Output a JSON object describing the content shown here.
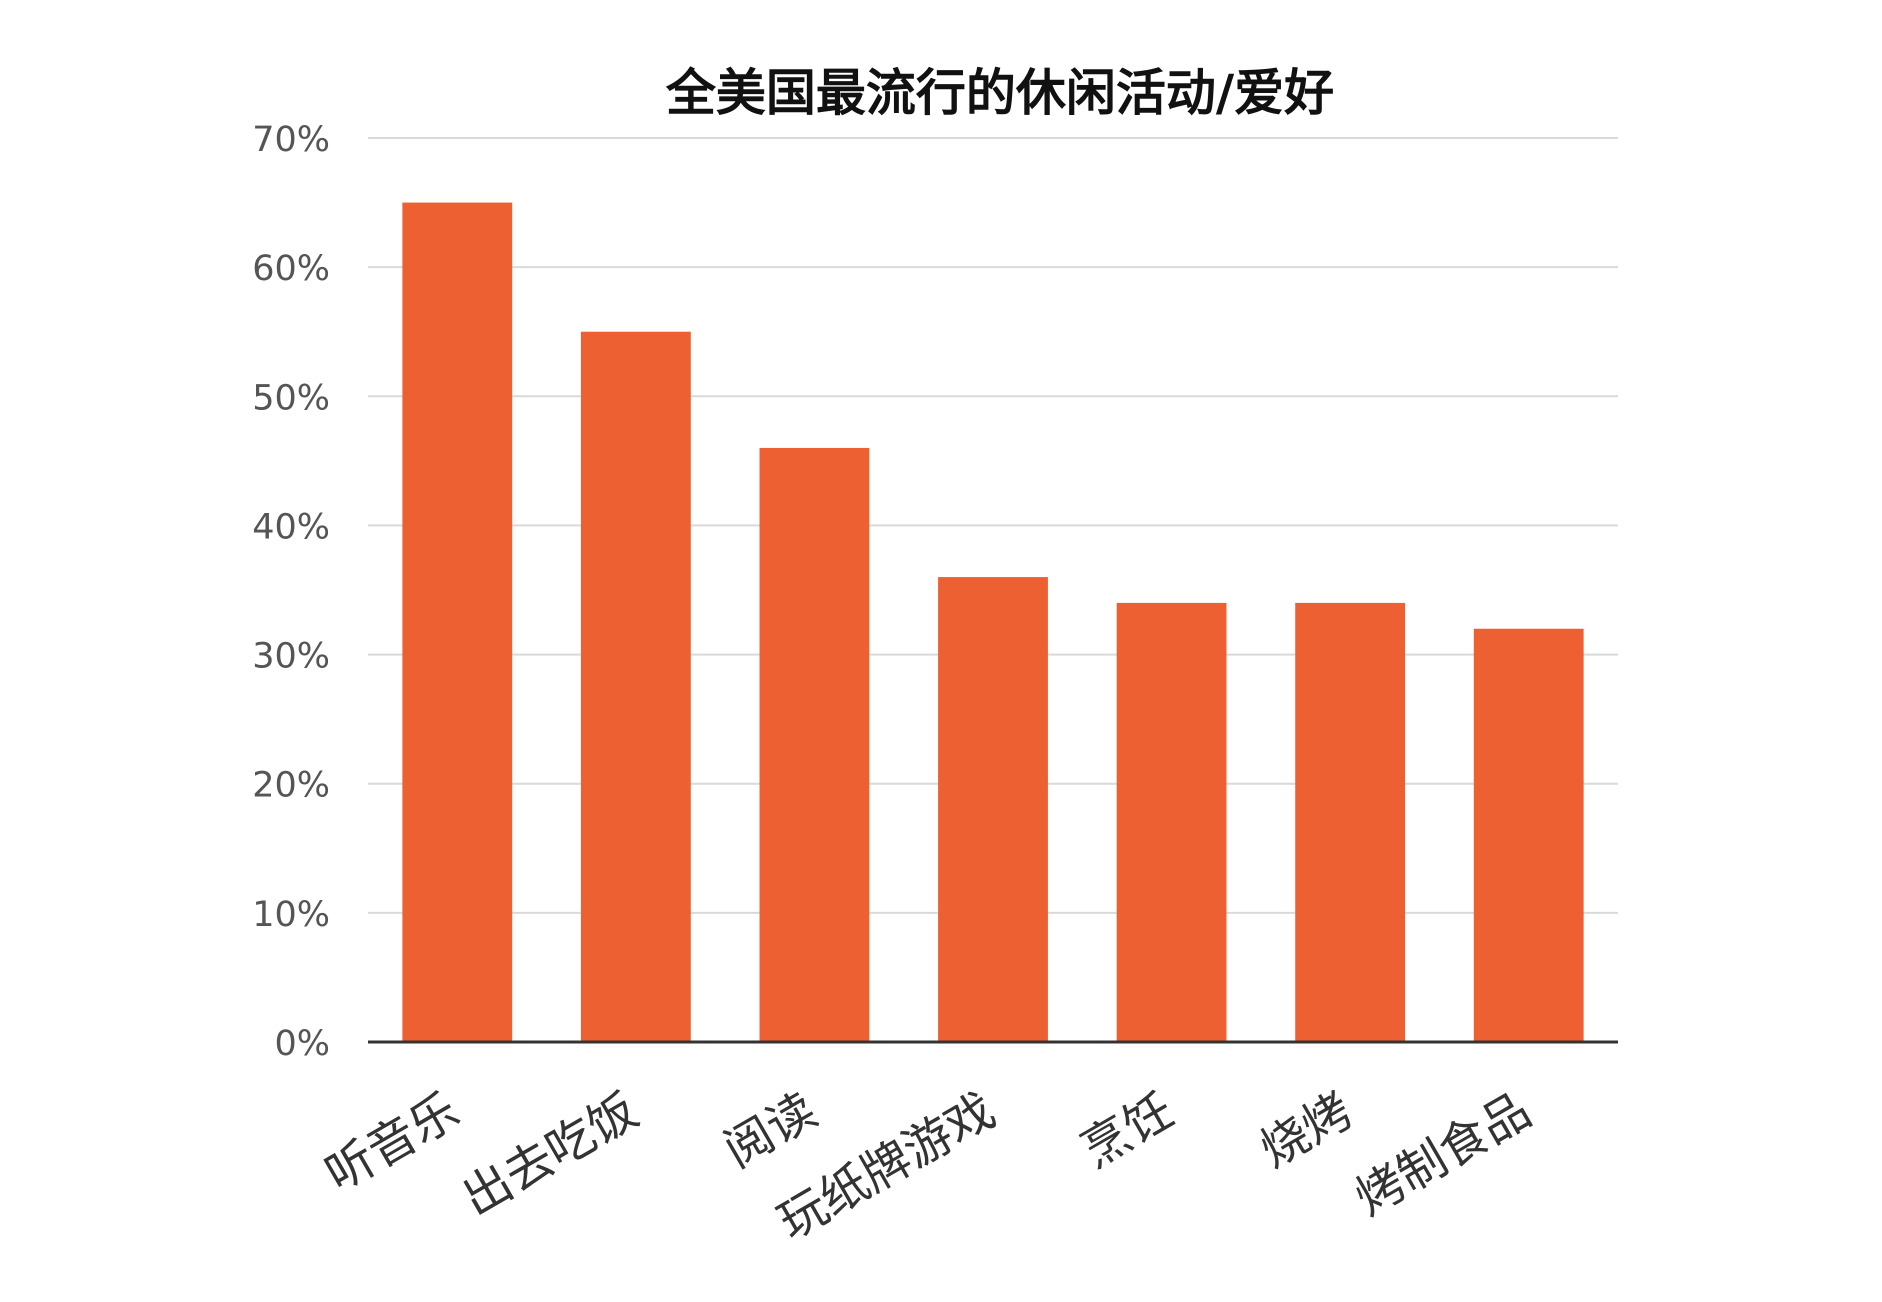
{
  "chart_data": {
    "type": "bar",
    "title": "全美国最流行的休闲活动/爱好",
    "xlabel": "",
    "ylabel": "",
    "categories": [
      "听音乐",
      "出去吃饭",
      "阅读",
      "玩纸牌游戏",
      "烹饪",
      "烧烤",
      "烤制食品"
    ],
    "values": [
      65,
      55,
      46,
      36,
      34,
      34,
      32
    ],
    "y_ticks": [
      "0%",
      "10%",
      "20%",
      "30%",
      "40%",
      "50%",
      "60%",
      "70%"
    ],
    "ylim": [
      0,
      70
    ],
    "grid": true,
    "legend": "none",
    "bar_color": "#ec6031"
  }
}
